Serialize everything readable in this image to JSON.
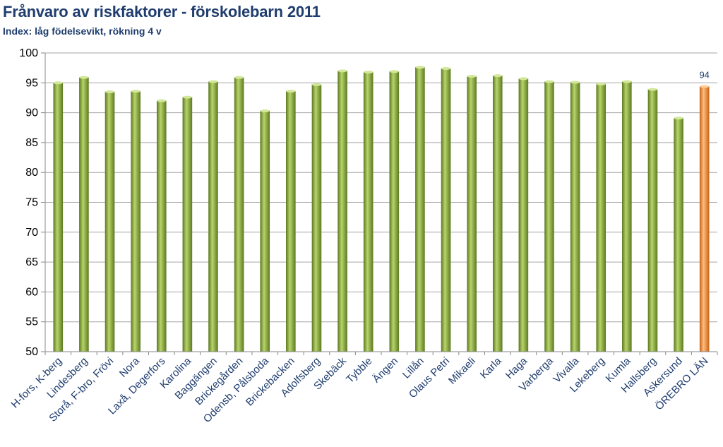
{
  "chart_data": {
    "type": "bar",
    "title": "Frånvaro av riskfaktorer - förskolebarn 2011",
    "subtitle": "Index: låg födelsevikt, rökning 4 v",
    "xlabel": "",
    "ylabel": "",
    "ylim": [
      50,
      100
    ],
    "yticks": [
      50,
      55,
      60,
      65,
      70,
      75,
      80,
      85,
      90,
      95,
      100
    ],
    "grid": true,
    "categories": [
      "H-fors, K-berg",
      "Lindesberg",
      "Storå, F-bro, Frövi",
      "Nora",
      "Laxå, Degerfors",
      "Karolina",
      "Baggängen",
      "Brickegården",
      "Odensb, Pålsboda",
      "Brickebacken",
      "Adolfsberg",
      "Skebäck",
      "Tybble",
      "Ängen",
      "Lillån",
      "Olaus Petri",
      "Mikaeli",
      "Karla",
      "Haga",
      "Varberga",
      "Vivalla",
      "Lekeberg",
      "Kumla",
      "Hallsberg",
      "Askersund",
      "ÖREBRO LÄN"
    ],
    "values": [
      95.0,
      95.9,
      93.5,
      93.6,
      92.0,
      92.6,
      95.2,
      95.9,
      90.3,
      93.6,
      94.7,
      97.0,
      96.8,
      96.9,
      97.6,
      97.4,
      96.1,
      96.2,
      95.7,
      95.2,
      95.1,
      94.8,
      95.2,
      93.9,
      89.1,
      94.4
    ],
    "data_labels": [
      {
        "category": "ÖREBRO LÄN",
        "text": "94"
      }
    ],
    "colors": {
      "default_bar": "#8fb041",
      "default_bar_dark": "#5f7d25",
      "highlight_bar": "#f39a4a",
      "highlight_bar_dark": "#c9661b",
      "highlight_category": "ÖREBRO LÄN",
      "grid": "#a6a6a6",
      "title": "#1f3d6e"
    }
  }
}
